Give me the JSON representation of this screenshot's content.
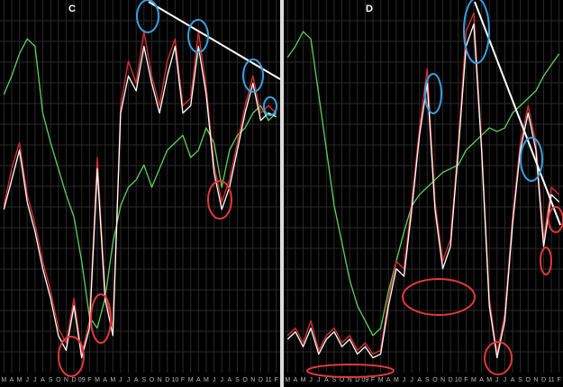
{
  "chart_data": [
    {
      "type": "line",
      "title": "C",
      "categories": [
        "M",
        "A",
        "M",
        "J",
        "J",
        "A",
        "S",
        "O",
        "N",
        "D",
        "09",
        "F",
        "M",
        "A",
        "M",
        "J",
        "J",
        "A",
        "S",
        "O",
        "N",
        "D",
        "10",
        "F",
        "M",
        "A",
        "M",
        "J",
        "J",
        "A",
        "S",
        "O",
        "N",
        "D",
        "11",
        "F"
      ],
      "ylim": [
        0,
        100
      ],
      "grid": true,
      "series": [
        {
          "color": "#5fd35f",
          "values": [
            75,
            80,
            86,
            90,
            88,
            70,
            62,
            55,
            48,
            42,
            30,
            15,
            12,
            20,
            35,
            45,
            50,
            52,
            56,
            50,
            55,
            60,
            62,
            64,
            58,
            60,
            66,
            62,
            50,
            60,
            64,
            66,
            70,
            72,
            68,
            70
          ]
        },
        {
          "color": "#e03030",
          "values": [
            45,
            55,
            62,
            48,
            40,
            30,
            22,
            12,
            8,
            20,
            5,
            14,
            58,
            22,
            12,
            72,
            84,
            78,
            92,
            80,
            72,
            84,
            90,
            72,
            74,
            92,
            77,
            56,
            46,
            52,
            62,
            72,
            80,
            70,
            72,
            70
          ]
        },
        {
          "color": "#ffffff",
          "values": [
            44,
            52,
            60,
            46,
            38,
            28,
            20,
            10,
            6,
            18,
            4,
            12,
            55,
            20,
            10,
            70,
            80,
            76,
            88,
            78,
            70,
            80,
            88,
            70,
            72,
            88,
            75,
            54,
            44,
            50,
            60,
            70,
            78,
            68,
            70,
            69
          ]
        }
      ]
    },
    {
      "type": "line",
      "title": "D",
      "categories": [
        "M",
        "A",
        "M",
        "J",
        "J",
        "A",
        "S",
        "O",
        "N",
        "D",
        "09",
        "F",
        "M",
        "A",
        "M",
        "J",
        "J",
        "A",
        "S",
        "O",
        "N",
        "D",
        "10",
        "F",
        "M",
        "A",
        "M",
        "J",
        "J",
        "A",
        "S",
        "O",
        "N",
        "D",
        "11",
        "F"
      ],
      "ylim": [
        0,
        100
      ],
      "grid": true,
      "series": [
        {
          "color": "#5fd35f",
          "values": [
            85,
            88,
            92,
            90,
            75,
            60,
            45,
            35,
            25,
            18,
            14,
            10,
            12,
            22,
            30,
            38,
            45,
            48,
            50,
            52,
            54,
            55,
            56,
            60,
            62,
            64,
            66,
            65,
            66,
            70,
            72,
            74,
            76,
            80,
            83,
            86
          ]
        },
        {
          "color": "#e03030",
          "values": [
            10,
            12,
            8,
            14,
            6,
            10,
            12,
            8,
            10,
            6,
            8,
            5,
            6,
            20,
            30,
            28,
            46,
            66,
            82,
            46,
            30,
            36,
            62,
            92,
            97,
            62,
            20,
            5,
            16,
            42,
            62,
            72,
            62,
            36,
            50,
            48
          ]
        },
        {
          "color": "#ffffff",
          "values": [
            9,
            11,
            7,
            12,
            5,
            9,
            11,
            7,
            9,
            5,
            7,
            4,
            5,
            18,
            28,
            26,
            44,
            64,
            78,
            44,
            28,
            34,
            60,
            88,
            94,
            60,
            18,
            4,
            14,
            40,
            60,
            70,
            60,
            34,
            48,
            46
          ]
        }
      ]
    }
  ]
}
